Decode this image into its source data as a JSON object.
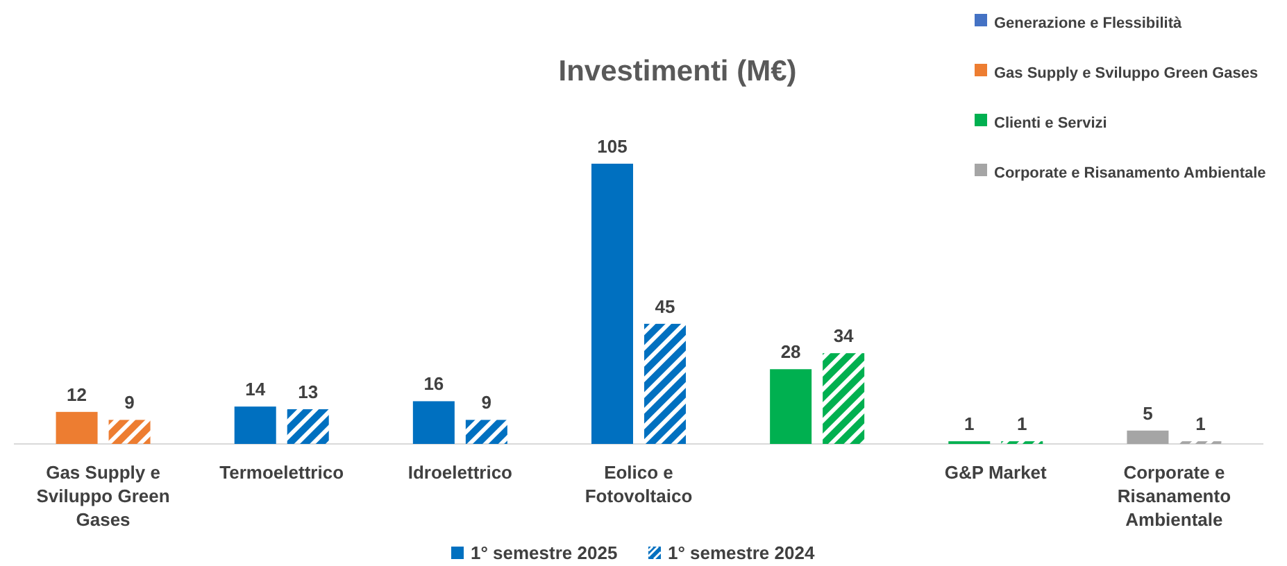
{
  "chart_data": {
    "type": "bar",
    "title": "Investimenti (M€)",
    "categories": [
      "Gas Supply e Sviluppo Green Gases",
      "Termoelettrico",
      "Idroelettrico",
      "Eolico e Fotovoltaico",
      null,
      "G&P Market",
      "Corporate e Risanamento Ambientale"
    ],
    "series": [
      {
        "name": "1° semestre 2025",
        "color": "#0070c0",
        "colors": [
          "#ed7d31",
          "#0070c0",
          "#0070c0",
          "#0070c0",
          "#00b050",
          "#00b050",
          "#a5a5a5"
        ],
        "values": [
          12,
          14,
          16,
          105,
          28,
          1,
          5
        ]
      },
      {
        "name": "1° semestre 2024",
        "color": "#0070c0",
        "colors": [
          "#ed7d31",
          "#0070c0",
          "#0070c0",
          "#0070c0",
          "#00b050",
          "#00b050",
          "#a5a5a5"
        ],
        "values": [
          9,
          13,
          9,
          45,
          34,
          1,
          1
        ]
      },
      {
        "name": "Generazione e Flessibilità",
        "color": "#4472c4",
        "values": [
          null,
          null,
          null,
          null,
          null,
          null,
          null
        ]
      },
      {
        "name": "Gas Supply e Sviluppo Green Gases",
        "color": "#ed7d31",
        "values": [
          null,
          null,
          null,
          null,
          null,
          null,
          null
        ]
      },
      {
        "name": "Clienti e Servizi",
        "color": "#00b050",
        "values": [
          null,
          null,
          null,
          null,
          null,
          null,
          null
        ]
      },
      {
        "name": "Corporate e Risanamento Ambientale",
        "color": "#a5a5a5",
        "values": [
          null,
          null,
          null,
          null,
          null,
          null,
          null
        ]
      }
    ],
    "data_labels": true,
    "legend": "top right"
  }
}
